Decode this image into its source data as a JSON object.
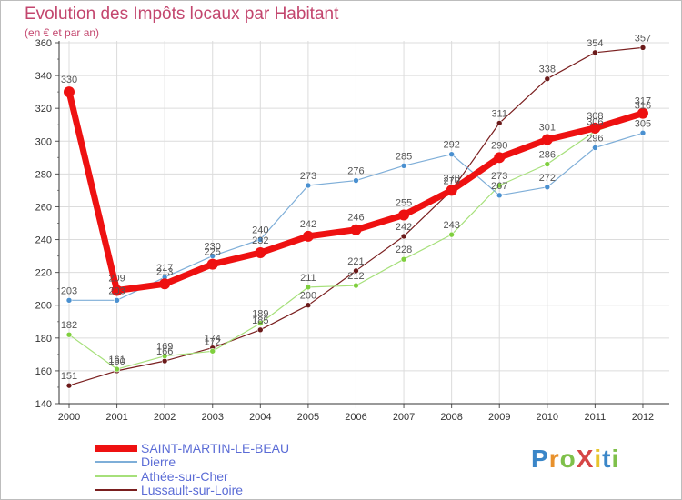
{
  "header": {
    "title": "Evolution des Impôts locaux par Habitant",
    "subtitle": "(en € et par an)"
  },
  "logo": {
    "text": "ProXiti",
    "letter_colors": [
      "#3a86c8",
      "#e8912c",
      "#7fc04a",
      "#d64545",
      "#e8c42c",
      "#3a86c8",
      "#7fc04a"
    ]
  },
  "chart_data": {
    "type": "line",
    "title": "Evolution des Impôts locaux par Habitant",
    "subtitle": "(en € et par an)",
    "xlabel": "",
    "ylabel": "",
    "x": [
      "2000",
      "2001",
      "2002",
      "2003",
      "2004",
      "2005",
      "2006",
      "2007",
      "2008",
      "2009",
      "2010",
      "2011",
      "2012"
    ],
    "ylim": [
      140,
      360
    ],
    "yticks": [
      140,
      160,
      180,
      200,
      220,
      240,
      260,
      280,
      300,
      320,
      340,
      360
    ],
    "grid": true,
    "series": [
      {
        "name": "Lussault-sur-Loire",
        "color": "#7a1f1f",
        "marker": "#6b1a1a",
        "width": 1.2,
        "radius": 3,
        "values": [
          151,
          160,
          166,
          174,
          185,
          200,
          221,
          242,
          270,
          311,
          338,
          354,
          357
        ]
      },
      {
        "name": "Athée-sur-Cher",
        "color": "#a6e07a",
        "marker": "#7fcf3e",
        "width": 1.2,
        "radius": 3,
        "values": [
          182,
          161,
          169,
          172,
          189,
          211,
          212,
          228,
          243,
          273,
          286,
          306,
          316
        ]
      },
      {
        "name": "Dierre",
        "color": "#7eaed8",
        "marker": "#4a90d0",
        "width": 1.2,
        "radius": 3,
        "values": [
          203,
          203,
          217,
          230,
          240,
          273,
          276,
          285,
          292,
          267,
          272,
          296,
          305
        ]
      },
      {
        "name": "SAINT-MARTIN-LE-BEAU",
        "color": "#ee1111",
        "marker": "#ee1111",
        "width": 7,
        "radius": 6,
        "values": [
          330,
          209,
          213,
          225,
          232,
          242,
          246,
          255,
          270,
          290,
          301,
          308,
          317
        ]
      }
    ],
    "legend": {
      "position": "bottom-left",
      "entries": [
        "SAINT-MARTIN-LE-BEAU",
        "Dierre",
        "Athée-sur-Cher",
        "Lussault-sur-Loire"
      ],
      "colors": [
        "#ee1111",
        "#7eaed8",
        "#a6e07a",
        "#7a1f1f"
      ]
    }
  }
}
